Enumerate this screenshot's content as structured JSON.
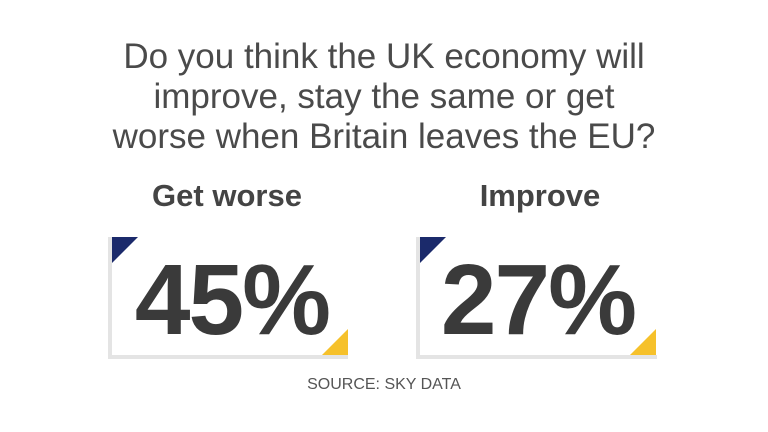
{
  "title": [
    "Do you think the UK economy will",
    "improve, stay the same or get",
    "worse when Britain leaves the EU?"
  ],
  "stats": [
    {
      "label": "Get worse",
      "value": "45%"
    },
    {
      "label": "Improve",
      "value": "27%"
    }
  ],
  "source": "SOURCE: SKY DATA"
}
